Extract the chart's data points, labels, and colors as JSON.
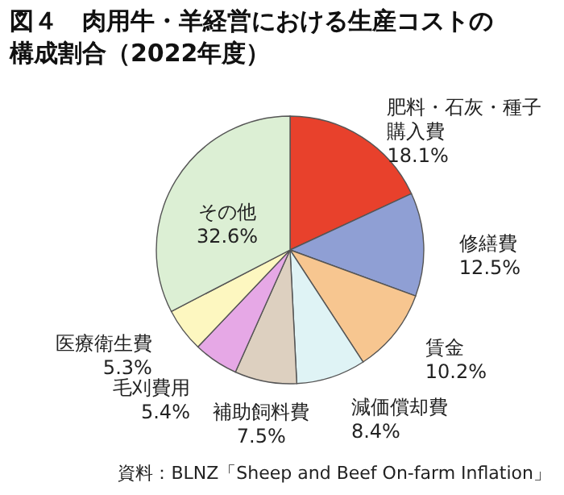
{
  "chart_data": {
    "type": "pie",
    "title": "図４　肉用牛・羊経営における生産コストの構成割合（2022年度）",
    "categories": [
      "肥料・石灰・種子購入費",
      "修繕費",
      "賃金",
      "減価償却費",
      "補助飼料費",
      "毛刈費用",
      "医療衛生費",
      "その他"
    ],
    "values": [
      18.1,
      12.5,
      10.2,
      8.4,
      7.5,
      5.4,
      5.3,
      32.6
    ],
    "value_labels": [
      "18.1%",
      "12.5%",
      "10.2%",
      "8.4%",
      "7.5%",
      "5.4%",
      "5.3%",
      "32.6%"
    ],
    "colors": [
      "#e8412c",
      "#8f9fd4",
      "#f7c690",
      "#dff3f5",
      "#ddd0c0",
      "#e6a8e6",
      "#fdf7c0",
      "#dcefd4"
    ],
    "annotations": [
      "資料：BLNZ「Sheep and Beef On-farm Inflation」"
    ]
  }
}
